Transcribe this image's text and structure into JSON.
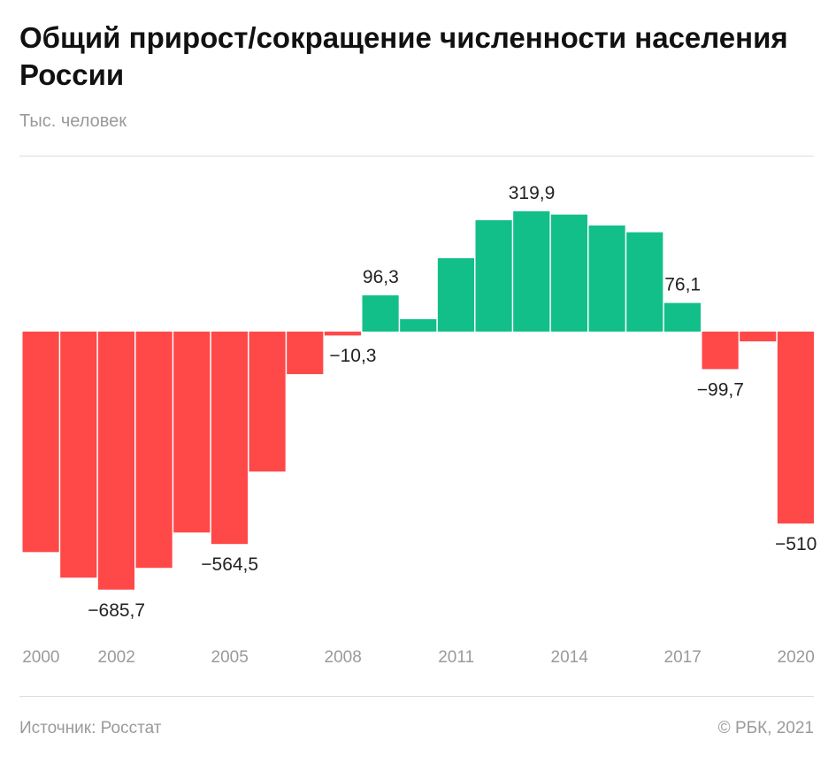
{
  "chart_data": {
    "type": "bar",
    "title": "Общий прирост/сокращение численности населения России",
    "subtitle": "Тыс. человек",
    "categories": [
      "2000",
      "2001",
      "2002",
      "2003",
      "2004",
      "2005",
      "2006",
      "2007",
      "2008",
      "2009",
      "2010",
      "2011",
      "2012",
      "2013",
      "2014",
      "2015",
      "2016",
      "2017",
      "2018",
      "2019",
      "2020"
    ],
    "values": [
      -586,
      -654,
      -685.7,
      -628,
      -534,
      -564.5,
      -372,
      -113,
      -10.3,
      96.3,
      33,
      195,
      296,
      319.9,
      311,
      282,
      264,
      76.1,
      -99.7,
      -26,
      -510
    ],
    "data_labels": {
      "2002": "−685,7",
      "2005": "−564,5",
      "2008": "−10,3",
      "2009": "96,3",
      "2013": "319,9",
      "2017": "76,1",
      "2018": "−99,7",
      "2020": "−510"
    },
    "x_tick_labels": [
      "2000",
      "2002",
      "2005",
      "2008",
      "2011",
      "2014",
      "2017",
      "2020"
    ],
    "ylim": [
      -700,
      330
    ],
    "grid": false,
    "colors": {
      "positive": "#13bf89",
      "negative": "#ff4848"
    }
  },
  "footer": {
    "source": "Источник: Росстат",
    "copyright": "© РБК, 2021"
  }
}
